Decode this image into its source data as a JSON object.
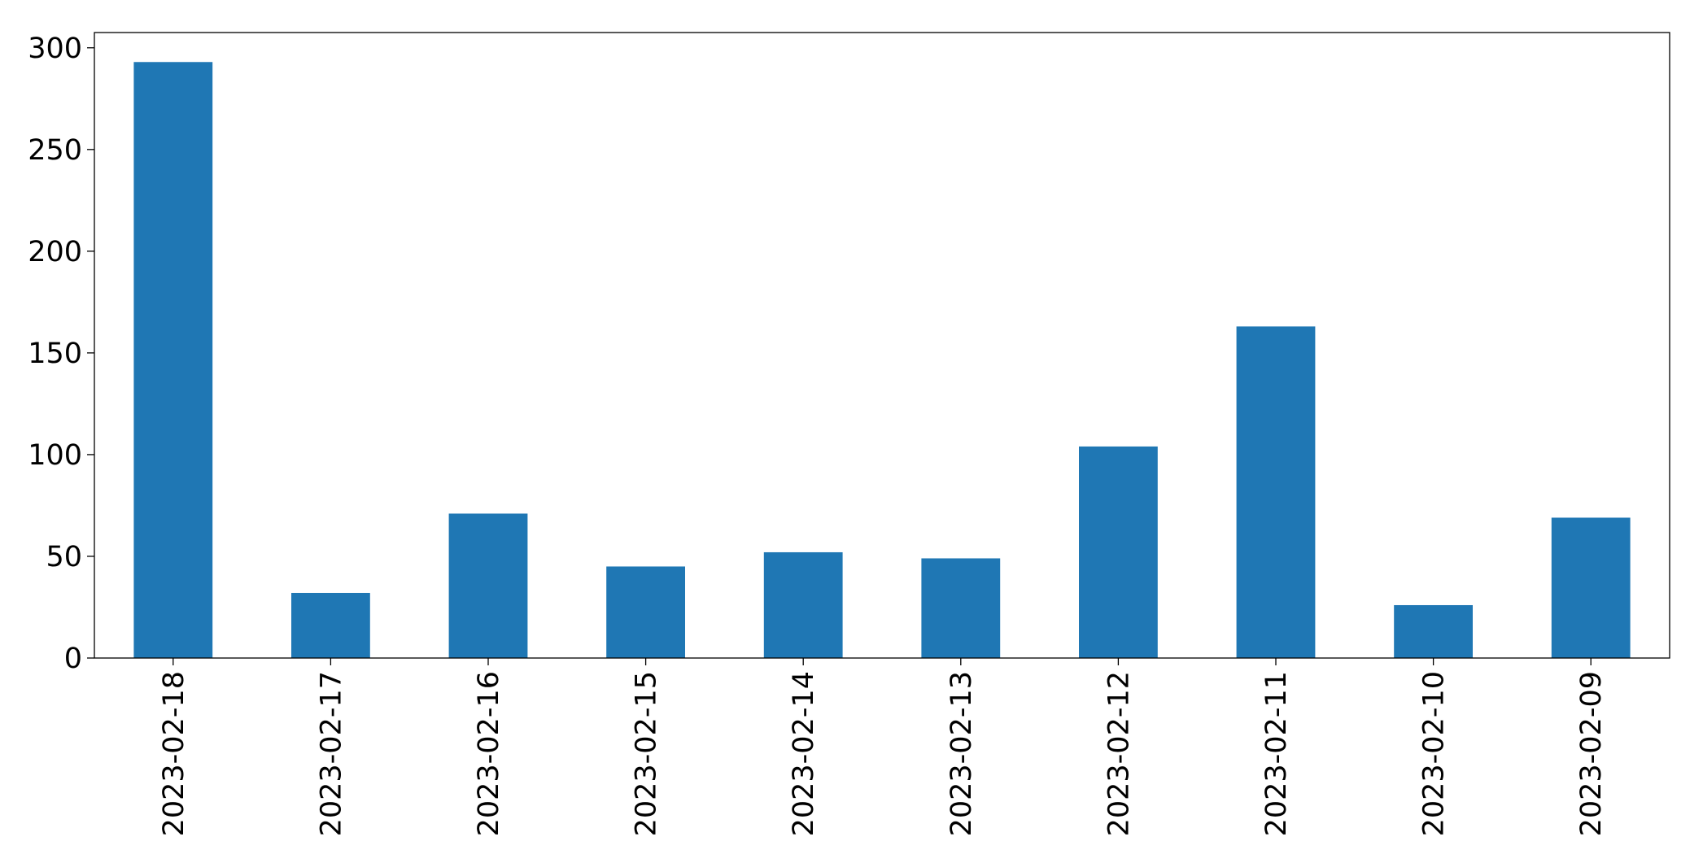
{
  "chart_data": {
    "type": "bar",
    "categories": [
      "2023-02-18",
      "2023-02-17",
      "2023-02-16",
      "2023-02-15",
      "2023-02-14",
      "2023-02-13",
      "2023-02-12",
      "2023-02-11",
      "2023-02-10",
      "2023-02-09"
    ],
    "values": [
      293,
      32,
      71,
      45,
      52,
      49,
      104,
      163,
      26,
      69
    ],
    "color": "#1f77b4",
    "ylim": [
      0,
      307.5
    ],
    "yticks": [
      0,
      50,
      100,
      150,
      200,
      250,
      300
    ],
    "grid": false
  }
}
